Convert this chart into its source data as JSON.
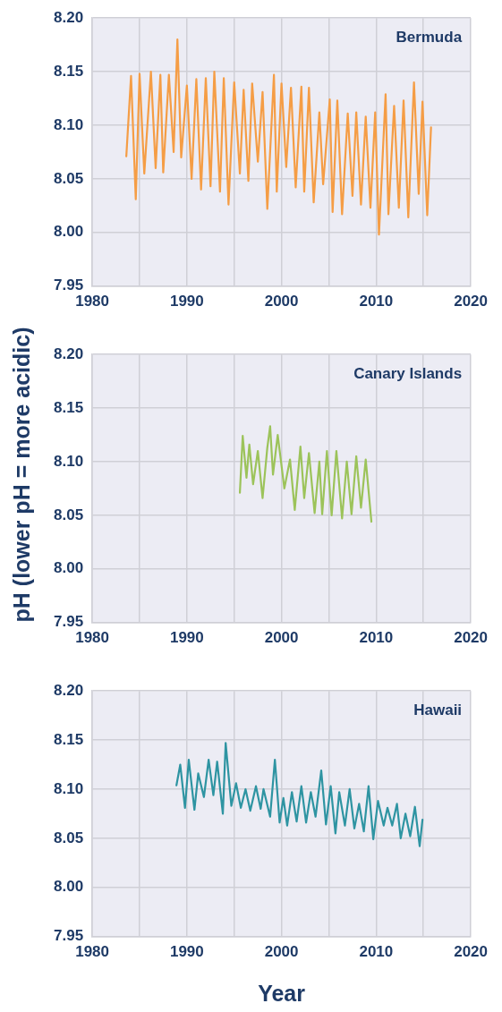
{
  "chart_data": [
    {
      "type": "line",
      "title": "Bermuda",
      "xlim": [
        1980,
        2020
      ],
      "ylim": [
        7.95,
        8.2
      ],
      "xticks": [
        1980,
        {
          "value": 1985,
          "label": null
        },
        1990,
        {
          "value": 1995,
          "label": null
        },
        2000,
        {
          "value": 2005,
          "label": null
        },
        2010,
        {
          "value": 2015,
          "label": null
        },
        2020
      ],
      "yticks": [
        7.95,
        {
          "value": 8.0,
          "label": "8.00"
        },
        8.05,
        {
          "value": 8.1,
          "label": "8.10"
        },
        8.15,
        {
          "value": 8.2,
          "label": "8.20"
        }
      ],
      "grid": true,
      "legend": false,
      "marker": "none",
      "line_style": "solid",
      "series": [
        {
          "color": "#f59d45",
          "x": [
            1983.6,
            1984.1,
            1984.6,
            1985.0,
            1985.5,
            1986.2,
            1986.7,
            1987.2,
            1987.5,
            1988.1,
            1988.6,
            1989.0,
            1989.4,
            1990.0,
            1990.5,
            1991.0,
            1991.5,
            1992.0,
            1992.5,
            1992.9,
            1993.5,
            1993.9,
            1994.4,
            1995.0,
            1995.6,
            1996.0,
            1996.5,
            1996.9,
            1997.5,
            1998.0,
            1998.5,
            1999.2,
            1999.5,
            2000.0,
            2000.5,
            2001.0,
            2001.5,
            2002.1,
            2002.4,
            2002.9,
            2003.4,
            2004.0,
            2004.4,
            2005.1,
            2005.4,
            2005.9,
            2006.4,
            2007.0,
            2007.5,
            2007.9,
            2008.4,
            2008.9,
            2009.4,
            2009.9,
            2010.3,
            2011.0,
            2011.3,
            2011.9,
            2012.4,
            2012.9,
            2013.4,
            2014.0,
            2014.5,
            2014.9,
            2015.4,
            2015.8
          ],
          "values": [
            8.071,
            8.146,
            8.031,
            8.148,
            8.055,
            8.15,
            8.06,
            8.147,
            8.056,
            8.147,
            8.075,
            8.18,
            8.07,
            8.137,
            8.05,
            8.143,
            8.04,
            8.144,
            8.043,
            8.15,
            8.038,
            8.144,
            8.026,
            8.14,
            8.055,
            8.133,
            8.048,
            8.139,
            8.066,
            8.131,
            8.022,
            8.147,
            8.038,
            8.139,
            8.061,
            8.135,
            8.042,
            8.136,
            8.038,
            8.135,
            8.028,
            8.112,
            8.045,
            8.124,
            8.019,
            8.123,
            8.017,
            8.111,
            8.034,
            8.112,
            8.026,
            8.108,
            8.023,
            8.112,
            7.998,
            8.129,
            8.017,
            8.118,
            8.023,
            8.123,
            8.014,
            8.14,
            8.036,
            8.122,
            8.016,
            8.098
          ]
        }
      ]
    },
    {
      "type": "line",
      "title": "Canary Islands",
      "ylabel": "pH (lower pH = more acidic)",
      "xlim": [
        1980,
        2020
      ],
      "ylim": [
        7.95,
        8.2
      ],
      "xticks": [
        1980,
        {
          "value": 1985,
          "label": null
        },
        1990,
        {
          "value": 1995,
          "label": null
        },
        2000,
        {
          "value": 2005,
          "label": null
        },
        2010,
        {
          "value": 2015,
          "label": null
        },
        2020
      ],
      "yticks": [
        7.95,
        {
          "value": 8.0,
          "label": "8.00"
        },
        8.05,
        {
          "value": 8.1,
          "label": "8.10"
        },
        8.15,
        {
          "value": 8.2,
          "label": "8.20"
        }
      ],
      "grid": true,
      "legend": false,
      "marker": "none",
      "line_style": "solid",
      "series": [
        {
          "color": "#9cc35a",
          "x": [
            1995.6,
            1995.9,
            1996.3,
            1996.6,
            1997.0,
            1997.5,
            1998.0,
            1998.5,
            1998.8,
            1999.1,
            1999.6,
            2000.3,
            2000.9,
            2001.4,
            2002.0,
            2002.4,
            2002.9,
            2003.5,
            2004.0,
            2004.3,
            2004.8,
            2005.3,
            2005.8,
            2006.4,
            2006.9,
            2007.4,
            2007.9,
            2008.4,
            2008.9,
            2009.5
          ],
          "values": [
            8.071,
            8.124,
            8.085,
            8.116,
            8.079,
            8.11,
            8.066,
            8.113,
            8.133,
            8.088,
            8.125,
            8.075,
            8.102,
            8.055,
            8.114,
            8.066,
            8.108,
            8.052,
            8.1,
            8.051,
            8.11,
            8.05,
            8.11,
            8.047,
            8.1,
            8.051,
            8.105,
            8.057,
            8.102,
            8.044
          ]
        }
      ]
    },
    {
      "type": "line",
      "title": "Hawaii",
      "xlabel": "Year",
      "xlim": [
        1980,
        2020
      ],
      "ylim": [
        7.95,
        8.2
      ],
      "xticks": [
        1980,
        {
          "value": 1985,
          "label": null
        },
        1990,
        {
          "value": 1995,
          "label": null
        },
        2000,
        {
          "value": 2005,
          "label": null
        },
        2010,
        {
          "value": 2015,
          "label": null
        },
        2020
      ],
      "yticks": [
        7.95,
        {
          "value": 8.0,
          "label": "8.00"
        },
        8.05,
        {
          "value": 8.1,
          "label": "8.10"
        },
        8.15,
        {
          "value": 8.2,
          "label": "8.20"
        }
      ],
      "grid": true,
      "legend": false,
      "marker": "none",
      "line_style": "solid",
      "series": [
        {
          "color": "#2e94a2",
          "x": [
            1988.9,
            1989.3,
            1989.8,
            1990.2,
            1990.8,
            1991.2,
            1991.8,
            1992.3,
            1992.8,
            1993.2,
            1993.8,
            1994.1,
            1994.7,
            1995.2,
            1995.7,
            1996.2,
            1996.7,
            1997.3,
            1997.8,
            1998.1,
            1998.8,
            1999.3,
            1999.8,
            2000.2,
            2000.6,
            2001.1,
            2001.6,
            2002.1,
            2002.6,
            2003.1,
            2003.6,
            2004.2,
            2004.7,
            2005.2,
            2005.7,
            2006.1,
            2006.7,
            2007.2,
            2007.7,
            2008.2,
            2008.7,
            2009.2,
            2009.7,
            2010.2,
            2010.8,
            2011.2,
            2011.7,
            2012.2,
            2012.6,
            2013.1,
            2013.6,
            2014.1,
            2014.6,
            2014.9
          ],
          "values": [
            8.104,
            8.125,
            8.081,
            8.13,
            8.079,
            8.116,
            8.092,
            8.13,
            8.094,
            8.128,
            8.075,
            8.147,
            8.083,
            8.106,
            8.081,
            8.1,
            8.078,
            8.103,
            8.08,
            8.1,
            8.072,
            8.13,
            8.066,
            8.091,
            8.063,
            8.097,
            8.067,
            8.103,
            8.066,
            8.097,
            8.072,
            8.119,
            8.064,
            8.103,
            8.055,
            8.097,
            8.063,
            8.1,
            8.06,
            8.085,
            8.057,
            8.103,
            8.049,
            8.088,
            8.063,
            8.081,
            8.063,
            8.085,
            8.05,
            8.075,
            8.052,
            8.082,
            8.042,
            8.069
          ]
        }
      ]
    }
  ]
}
